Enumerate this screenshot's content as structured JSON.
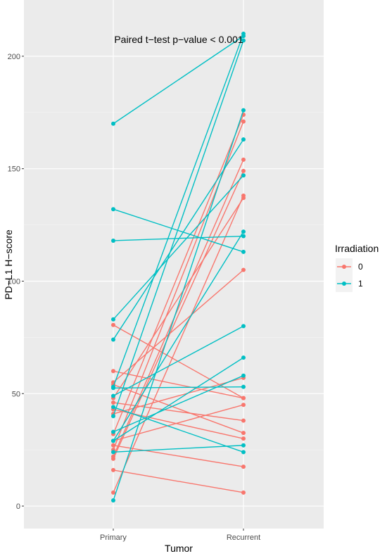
{
  "chart_data": {
    "type": "line",
    "title": "",
    "annotation": "Paired t−test p−value < 0.001",
    "xlabel": "Tumor",
    "ylabel": "PD−L1 H−score",
    "categories": [
      "Primary",
      "Recurrent"
    ],
    "ylim": [
      -10,
      225
    ],
    "yticks": [
      0,
      50,
      100,
      150,
      200
    ],
    "grid": true,
    "legend": {
      "title": "Irradiation",
      "position": "right",
      "entries": [
        {
          "label": "0",
          "color": "#F8766D"
        },
        {
          "label": "1",
          "color": "#00BFC4"
        }
      ]
    },
    "series": [
      {
        "name": "0",
        "color": "#F8766D",
        "pairs": [
          [
            80.5,
            48
          ],
          [
            60,
            48
          ],
          [
            48,
            137
          ],
          [
            46,
            38
          ],
          [
            43,
            30
          ],
          [
            41,
            57
          ],
          [
            32,
            174
          ],
          [
            27,
            17.5
          ],
          [
            25,
            171
          ],
          [
            22,
            154
          ],
          [
            21,
            149
          ],
          [
            16,
            6
          ],
          [
            6,
            138
          ],
          [
            54,
            32.5
          ],
          [
            55,
            105
          ],
          [
            29,
            45
          ]
        ]
      },
      {
        "name": "1",
        "color": "#00BFC4",
        "pairs": [
          [
            170,
            209
          ],
          [
            132,
            113
          ],
          [
            118,
            120
          ],
          [
            83,
            147
          ],
          [
            74,
            163
          ],
          [
            52.5,
            53
          ],
          [
            49,
            80
          ],
          [
            44,
            24
          ],
          [
            33,
            58
          ],
          [
            29,
            66
          ],
          [
            24,
            27
          ],
          [
            2.5,
            176
          ],
          [
            40,
            207
          ],
          [
            29,
            122
          ],
          [
            53,
            210
          ]
        ]
      }
    ]
  }
}
